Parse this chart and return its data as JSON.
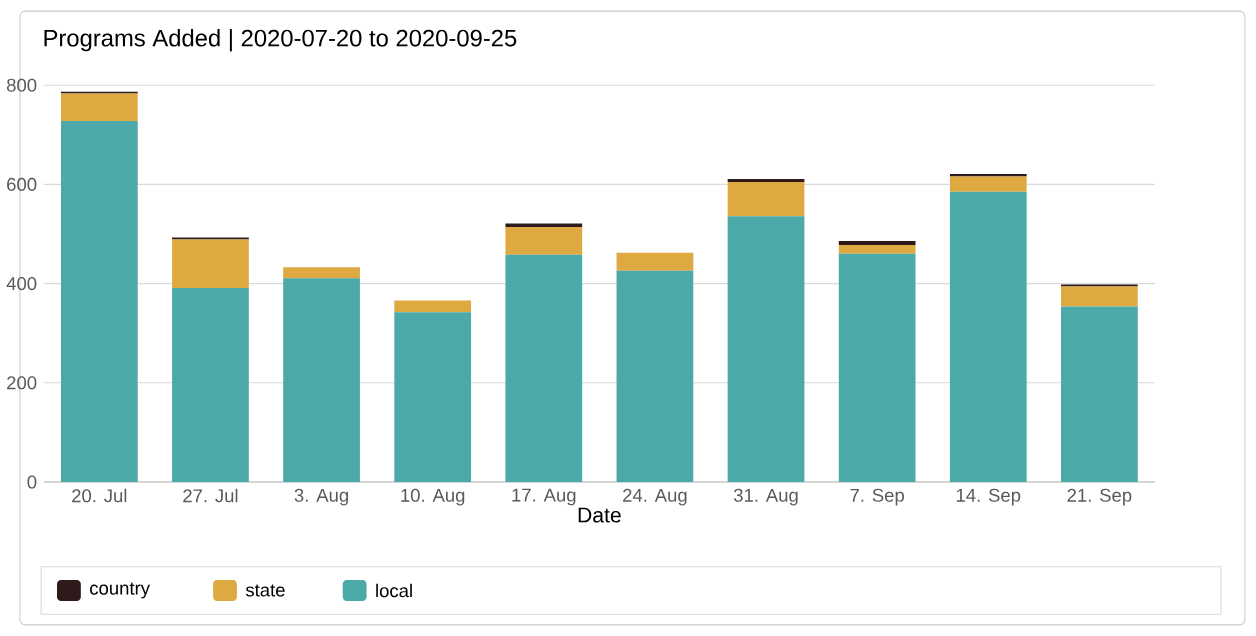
{
  "chart_data": {
    "type": "bar",
    "title": "Programs Added | 2020-07-20 to 2020-09-25",
    "xlabel": "Date",
    "categories": [
      "20. Jul",
      "27. Jul",
      "3. Aug",
      "10. Aug",
      "17. Aug",
      "24. Aug",
      "31. Aug",
      "7. Sep",
      "14. Sep",
      "21. Sep"
    ],
    "stacked": true,
    "series": [
      {
        "name": "local",
        "color": "#4ba9a8",
        "values": [
          728,
          391,
          411,
          342,
          458,
          426,
          536,
          460,
          585,
          354
        ]
      },
      {
        "name": "state",
        "color": "#dfa942",
        "values": [
          55,
          98,
          22,
          24,
          56,
          36,
          69,
          18,
          31,
          40
        ]
      },
      {
        "name": "country",
        "color": "#2e1a1a",
        "values": [
          4,
          4,
          0,
          0,
          7,
          0,
          6,
          8,
          5,
          4
        ]
      }
    ],
    "ylim": [
      0,
      800
    ],
    "yticks": [
      0,
      200,
      400,
      600,
      800
    ],
    "grid": "y",
    "legend": "bottom left"
  }
}
